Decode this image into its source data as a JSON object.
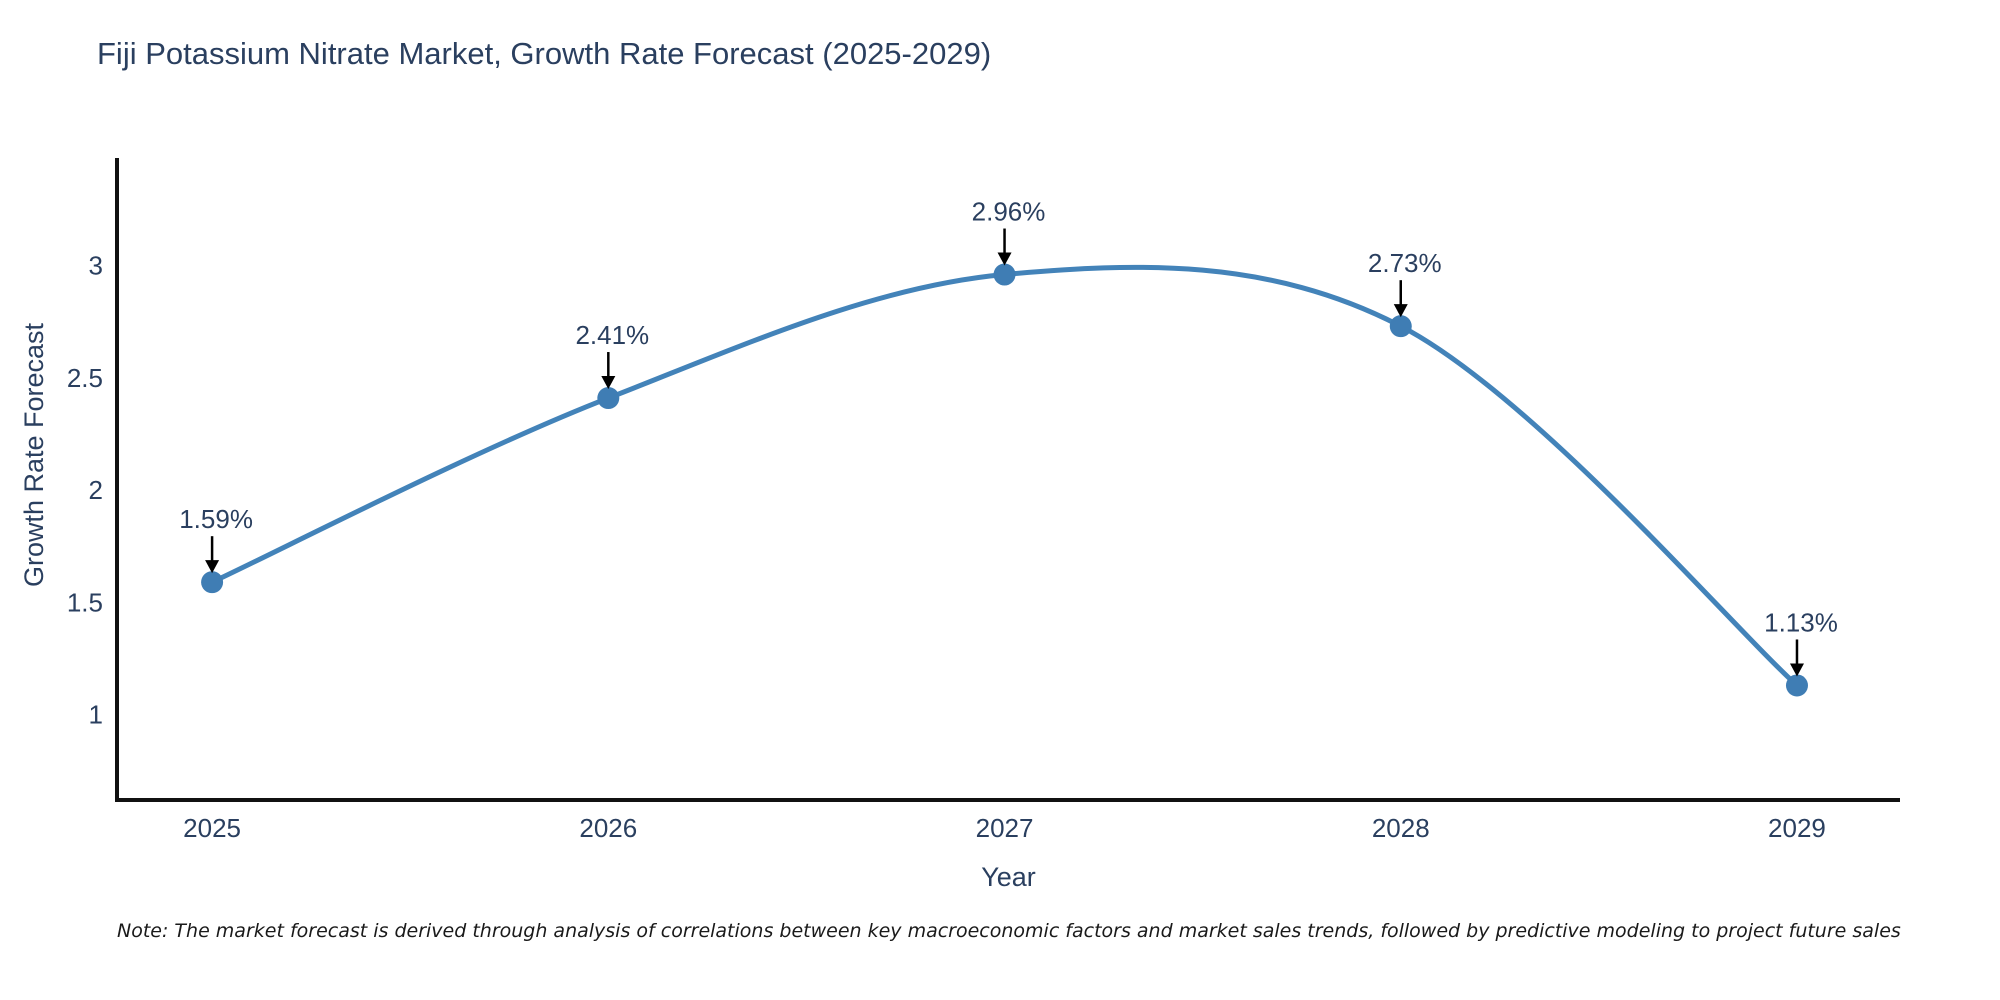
{
  "title": "Fiji Potassium Nitrate Market, Growth Rate Forecast (2025-2029)",
  "note": "Note: The market forecast is derived through analysis of correlations between key macroeconomic factors and market sales trends, followed by predictive modeling to project future sales",
  "colors": {
    "title_text": "#2a3f5f",
    "axis_text": "#2a3f5f",
    "annotation_text": "#2a3f5f",
    "line": "#4383b9",
    "marker": "#3f7db4",
    "spine": "#111111",
    "arrow": "#000000",
    "background": "#ffffff"
  },
  "chart_data": {
    "type": "line",
    "title": "Fiji Potassium Nitrate Market, Growth Rate Forecast (2025-2029)",
    "xlabel": "Year",
    "ylabel": "Growth Rate Forecast",
    "categories": [
      "2025",
      "2026",
      "2027",
      "2028",
      "2029"
    ],
    "x": [
      2025,
      2026,
      2027,
      2028,
      2029
    ],
    "values": [
      1.59,
      2.41,
      2.96,
      2.73,
      1.13
    ],
    "point_labels": [
      "1.59%",
      "2.41%",
      "2.96%",
      "2.73%",
      "1.13%"
    ],
    "series": [
      {
        "name": "Growth Rate Forecast",
        "values": [
          1.59,
          2.41,
          2.96,
          2.73,
          1.13
        ]
      }
    ],
    "yticks": [
      1,
      1.5,
      2,
      2.5,
      3
    ],
    "ytick_labels": [
      "1",
      "1.5",
      "2",
      "2.5",
      "3"
    ],
    "xlim": [
      2024.76,
      2029.26
    ],
    "ylim": [
      0.62,
      3.47
    ],
    "line_shape": "spline",
    "grid": false,
    "legend_position": "none",
    "annotations": "value labels with downward arrows above each point"
  }
}
